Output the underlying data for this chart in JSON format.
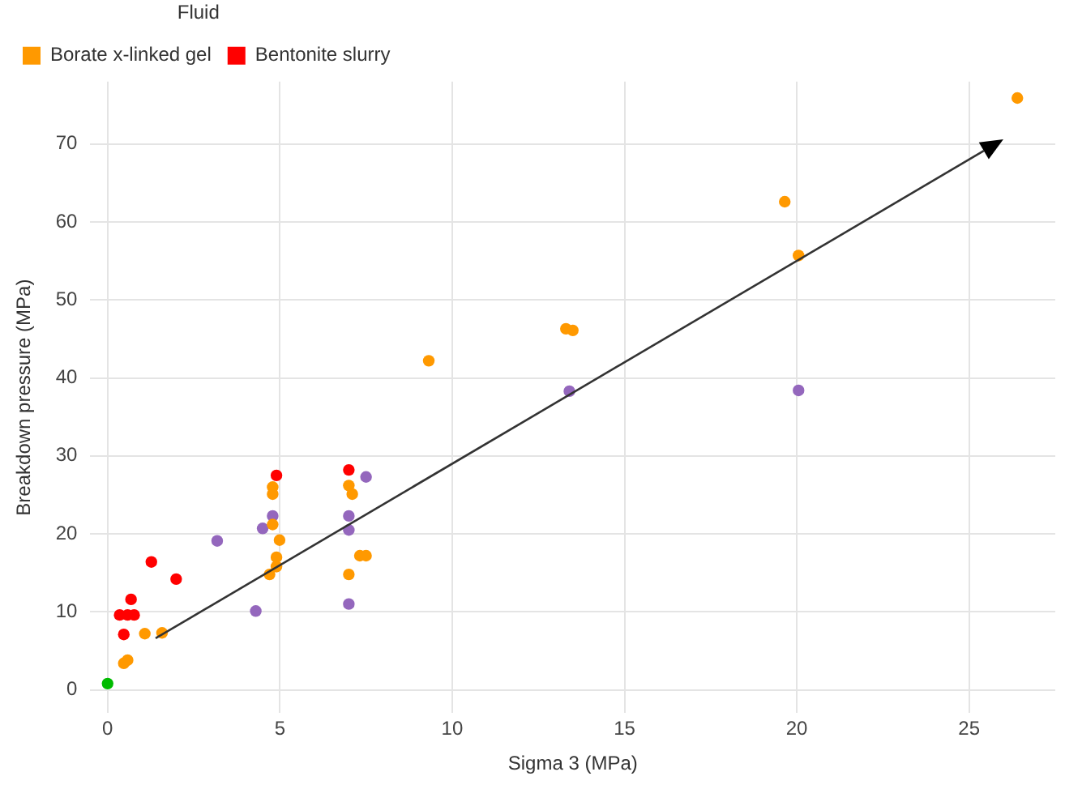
{
  "chart_data": {
    "type": "scatter",
    "xlabel": "Sigma 3 (MPa)",
    "ylabel": "Breakdown pressure (MPa)",
    "legend_title": "Fluid",
    "legend": "top left",
    "grid": true,
    "marker": "circle",
    "xlim": [
      -0.5,
      27.5
    ],
    "ylim": [
      -3,
      78
    ],
    "xticks": [
      0,
      5,
      10,
      15,
      20,
      25
    ],
    "yticks": [
      0,
      10,
      20,
      30,
      40,
      50,
      60,
      70
    ],
    "series": [
      {
        "name": "Borate x-linked gel",
        "color": "#ff9900",
        "x": [
          0.47,
          0.58,
          1.08,
          1.58,
          4.79,
          4.79,
          4.79,
          4.99,
          4.9,
          4.9,
          4.7,
          7.0,
          7.1,
          7.0,
          7.32,
          7.5,
          9.32,
          13.3,
          13.5,
          19.65,
          20.05,
          26.4
        ],
        "values": [
          3.4,
          3.8,
          7.2,
          7.3,
          26.0,
          25.1,
          21.2,
          19.2,
          17.0,
          15.8,
          14.8,
          26.2,
          25.1,
          14.8,
          17.2,
          17.2,
          42.2,
          46.3,
          46.1,
          62.6,
          55.7,
          75.9
        ]
      },
      {
        "color": "#9467bd",
        "x": [
          3.18,
          4.3,
          4.5,
          4.79,
          7.0,
          7.0,
          7.0,
          7.5,
          13.4,
          20.05
        ],
        "values": [
          19.1,
          10.1,
          20.7,
          22.3,
          22.3,
          20.5,
          11.0,
          27.3,
          38.3,
          38.4
        ]
      },
      {
        "name": "Bentonite slurry",
        "color": "#ff0000",
        "x": [
          0.35,
          0.58,
          0.77,
          0.47,
          0.68,
          1.27,
          1.99,
          4.9,
          7.0
        ],
        "values": [
          9.6,
          9.6,
          9.6,
          7.1,
          11.6,
          16.4,
          14.2,
          27.5,
          28.2
        ]
      },
      {
        "color": "#00bb00",
        "x": [
          0
        ],
        "values": [
          0.8
        ]
      }
    ]
  }
}
